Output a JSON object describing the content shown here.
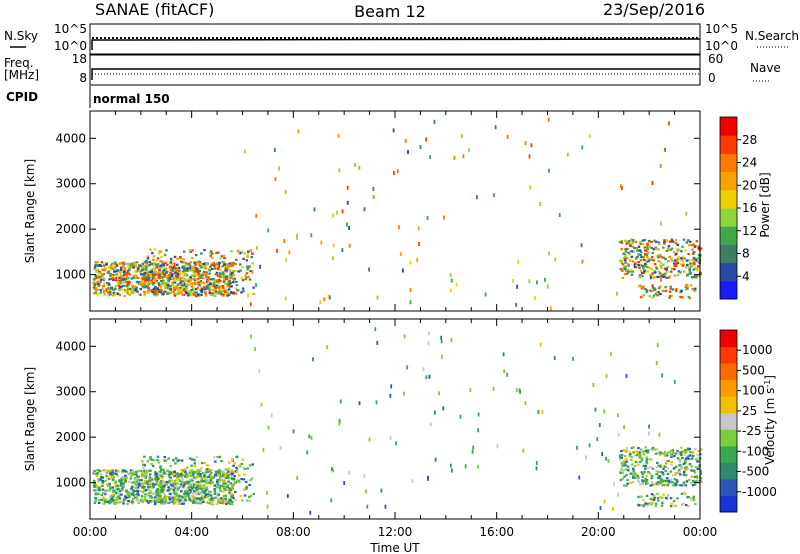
{
  "header": {
    "station": "SANAE (fitACF)",
    "beam": "Beam 12",
    "date": "23/Sep/2016"
  },
  "top_panels": {
    "nsky_label": "N.Sky",
    "nsky_ticks": [
      "10^5",
      "10^0"
    ],
    "nsearch_label": "N.Search",
    "nsearch_ticks": [
      "10^5",
      "10^0"
    ],
    "freq_label_1": "Freq.",
    "freq_label_2": "[MHz]",
    "freq_ticks": [
      "18",
      "8"
    ],
    "nave_label": "Nave",
    "nave_ticks": [
      "60",
      "0"
    ],
    "cpid_label": "CPID",
    "cpid_value": "normal 150"
  },
  "chart_data": [
    {
      "type": "heatmap",
      "name": "power",
      "xlabel": "",
      "ylabel": "Slant Range [km]",
      "y_ticks": [
        1000,
        2000,
        3000,
        4000
      ],
      "ylim": [
        200,
        4600
      ],
      "colorbar": {
        "label": "Power [dB]",
        "ticks": [
          "4",
          "8",
          "12",
          "16",
          "20",
          "24",
          "28"
        ],
        "colors": [
          "#1a1aff",
          "#2a4aa8",
          "#3b7f60",
          "#3fa84a",
          "#8fd63a",
          "#f0d000",
          "#f5a300",
          "#ff7a00",
          "#ff3a00",
          "#ee0000"
        ]
      },
      "features": [
        {
          "x_hours": [
            0.0,
            6.0
          ],
          "range_km": [
            500,
            1400
          ],
          "level": "8-24 dB"
        },
        {
          "x_hours": [
            21.0,
            24.0
          ],
          "range_km": [
            1000,
            1900
          ],
          "level": "8-20 dB"
        }
      ]
    },
    {
      "type": "heatmap",
      "name": "velocity",
      "xlabel": "Time UT",
      "ylabel": "Slant Range [km]",
      "x_tick_labels": [
        "00:00",
        "04:00",
        "08:00",
        "12:00",
        "16:00",
        "20:00",
        "00:00"
      ],
      "y_ticks": [
        1000,
        2000,
        3000,
        4000
      ],
      "ylim": [
        200,
        4600
      ],
      "colorbar": {
        "label": "Velocity [m s-1]",
        "label_main": "Velocity  [m s",
        "label_sup": "-1",
        "label_close": "]",
        "ticks": [
          "1000",
          "500",
          "100",
          "25",
          "-25",
          "-100",
          "-500",
          "-1000"
        ],
        "colors": [
          "#1535d8",
          "#2a58b8",
          "#2f8a70",
          "#3aa84e",
          "#78d040",
          "#c8c8c8",
          "#f2c000",
          "#ff9a00",
          "#ff6a00",
          "#ff3a00",
          "#ee0000"
        ]
      },
      "features": [
        {
          "x_hours": [
            0.0,
            6.0
          ],
          "range_km": [
            500,
            1400
          ],
          "level": "-25 to 100 m/s"
        },
        {
          "x_hours": [
            21.0,
            24.0
          ],
          "range_km": [
            1000,
            1900
          ],
          "level": "-500 to 500 m/s"
        }
      ]
    }
  ]
}
